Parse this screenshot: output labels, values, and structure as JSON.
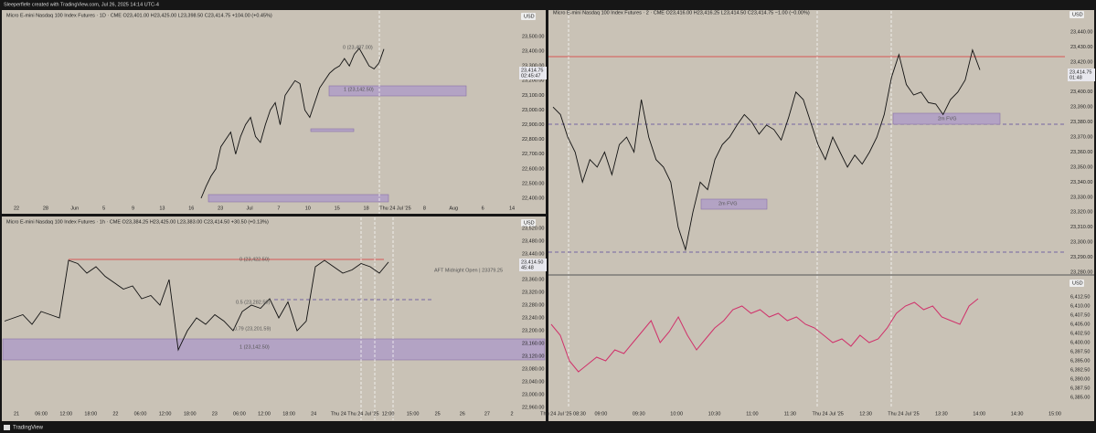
{
  "header": {
    "text": "Sleeperflefe created with TradingView.com, Jul 26, 2025 14:14 UTC-4"
  },
  "footer": {
    "brand": "TradingView"
  },
  "panels": [
    {
      "title": "Micro E-mini Nasdaq 100 Index Futures · 1D · CME  O23,401.00 H23,425.00 L23,398.50 C23,414.75 +104.00 (+0.45%)",
      "currency": "USD",
      "price_tag": "23,414.75",
      "countdown": "02:45:47",
      "y_labels": [
        "23,500.00",
        "23,400.00",
        "23,300.00",
        "23,200.00",
        "23,100.00",
        "23,000.00",
        "22,900.00",
        "22,800.00",
        "22,700.00",
        "22,600.00",
        "22,500.00",
        "22,400.00"
      ],
      "x_labels": [
        "22",
        "28",
        "Jun",
        "5",
        "9",
        "13",
        "16",
        "23",
        "Jul",
        "7",
        "10",
        "15",
        "18",
        "Thu 24 Jul '25",
        "8",
        "Aug",
        "6",
        "14"
      ],
      "annotations": [
        "0 (23,487.00)",
        "1 (23,142.50)"
      ],
      "closes": [
        22400,
        22480,
        22550,
        22600,
        22750,
        22800,
        22850,
        22700,
        22820,
        22900,
        22950,
        22820,
        22780,
        22900,
        23000,
        23050,
        22900,
        23100,
        23150,
        23200,
        23180,
        23000,
        22950,
        23050,
        23150,
        23200,
        23250,
        23280,
        23300,
        23350,
        23300,
        23380,
        23420,
        23360,
        23300,
        23280,
        23320,
        23414.75
      ]
    },
    {
      "title": "Micro E-mini Nasdaq 100 Index Futures · 1h · CME  O23,384.25 H23,425.00 L23,383.00 C23,414.50 +30.50 (+0.13%)",
      "currency": "USD",
      "price_tag": "23,414.50",
      "countdown": "45:48",
      "y_labels": [
        "23,520.00",
        "23,480.00",
        "23,440.00",
        "23,400.00",
        "23,360.00",
        "23,320.00",
        "23,280.00",
        "23,240.00",
        "23,200.00",
        "23,160.00",
        "23,120.00",
        "23,080.00",
        "23,040.00",
        "23,000.00",
        "22,960.00"
      ],
      "x_labels": [
        "21",
        "06:00",
        "12:00",
        "18:00",
        "22",
        "06:00",
        "12:00",
        "18:00",
        "23",
        "06:00",
        "12:00",
        "18:00",
        "24",
        "Thu 24",
        "Thu 24 Jul '25",
        "12:00",
        "15:00",
        "25",
        "26",
        "27",
        "2"
      ],
      "annotations": [
        "0 (23,422.50)",
        "0.5 (23,282.50)",
        "0.79 (23,201.59)",
        "1 (23,142.50)",
        "AFT Midnight Open | 23379.25"
      ],
      "closes": [
        23230,
        23240,
        23250,
        23220,
        23260,
        23250,
        23240,
        23420,
        23410,
        23380,
        23400,
        23370,
        23350,
        23330,
        23340,
        23300,
        23310,
        23280,
        23360,
        23140,
        23200,
        23240,
        23220,
        23250,
        23230,
        23200,
        23260,
        23280,
        23270,
        23300,
        23240,
        23290,
        23200,
        23230,
        23400,
        23420,
        23400,
        23380,
        23390,
        23410,
        23400,
        23380,
        23414.5
      ]
    },
    {
      "title": "Micro E-mini Nasdaq 100 Index Futures · 2 · CME  O23,416.00 H23,416.25 L23,414.50 C23,414.75 −1.00 (−0.00%)",
      "currency": "USD",
      "price_tag": "23,414.75",
      "countdown": "01:48",
      "y_labels": [
        "23,440.00",
        "23,430.00",
        "23,420.00",
        "23,410.00",
        "23,400.00",
        "23,390.00",
        "23,380.00",
        "23,370.00",
        "23,360.00",
        "23,350.00",
        "23,340.00",
        "23,330.00",
        "23,320.00",
        "23,310.00",
        "23,300.00",
        "23,290.00",
        "23,280.00"
      ],
      "x_labels": [
        "Thu 24 Jul '25  08:30",
        "09:00",
        "09:30",
        "10:00",
        "10:30",
        "11:00",
        "11:30",
        "Thu 24 Jul '25",
        "12:30",
        "Thu 24 Jul '25",
        "13:30",
        "14:00",
        "14:30",
        "15:00"
      ],
      "annotations": [
        "2m FVG",
        "2m FVG"
      ],
      "closes": [
        23390,
        23385,
        23370,
        23360,
        23340,
        23355,
        23350,
        23360,
        23345,
        23365,
        23370,
        23360,
        23395,
        23370,
        23355,
        23350,
        23340,
        23310,
        23295,
        23320,
        23340,
        23335,
        23355,
        23365,
        23370,
        23378,
        23385,
        23380,
        23372,
        23378,
        23375,
        23368,
        23383,
        23400,
        23395,
        23380,
        23365,
        23355,
        23370,
        23360,
        23350,
        23358,
        23352,
        23360,
        23370,
        23385,
        23410,
        23425,
        23405,
        23398,
        23400,
        23393,
        23392,
        23385,
        23395,
        23400,
        23408,
        23428,
        23414.75
      ],
      "indicator_currency": "USD",
      "indicator_labels": [
        "6,412.50",
        "6,410.00",
        "6,407.50",
        "6,405.00",
        "6,402.50",
        "6,400.00",
        "6,397.50",
        "6,395.00",
        "6,392.50",
        "6,390.00",
        "6,387.50",
        "6,385.00"
      ],
      "indicator_values": [
        6405,
        6402,
        6395,
        6392,
        6394,
        6396,
        6395,
        6398,
        6397,
        6400,
        6403,
        6406,
        6400,
        6403,
        6407,
        6402,
        6398,
        6401,
        6404,
        6406,
        6409,
        6410,
        6408,
        6409,
        6407,
        6408,
        6406,
        6407,
        6405,
        6404,
        6402,
        6400,
        6401,
        6399,
        6402,
        6400,
        6401,
        6404,
        6408,
        6410,
        6411,
        6409,
        6410,
        6407,
        6406,
        6405,
        6410,
        6412
      ]
    }
  ]
}
